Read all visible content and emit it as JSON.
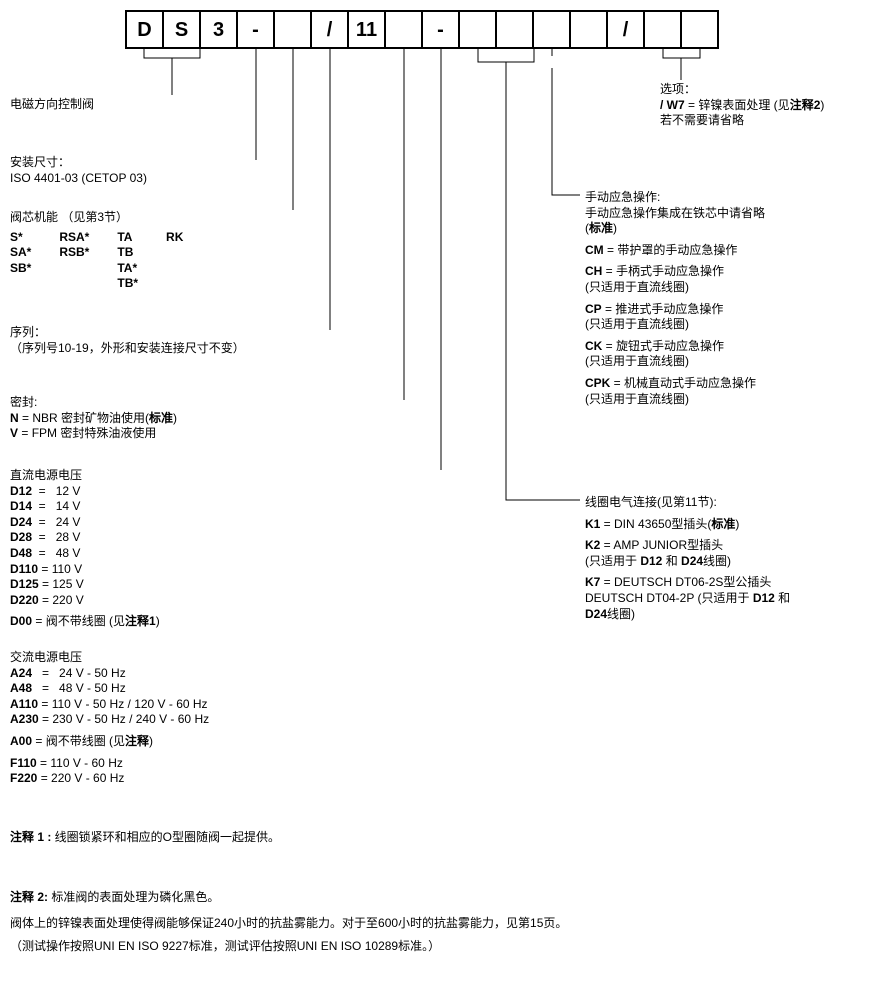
{
  "boxes": [
    "D",
    "S",
    "3",
    "-",
    "",
    "/",
    "11",
    "",
    "-",
    "",
    "",
    "",
    "",
    "/",
    "",
    ""
  ],
  "left": {
    "l1": "电磁方向控制阀",
    "size_h": "安装尺寸：",
    "size_v": "ISO 4401-03 (CETOP 03)",
    "spool_h": "阀芯机能  （见第3节）",
    "spool_c1": [
      "S*",
      "SA*",
      "SB*"
    ],
    "spool_c2": [
      "RSA*",
      "RSB*"
    ],
    "spool_c3": [
      "TA",
      "TB",
      "TA*",
      "TB*"
    ],
    "spool_c4": [
      "RK"
    ],
    "seq_h": "序列：",
    "seq_v": "（序列号10-19，外形和安装连接尺寸不变）",
    "seal_h": "密封:",
    "seal_n_code": "N",
    "seal_n_desc": " = NBR 密封矿物油使用(",
    "seal_n_std": "标准",
    "seal_n_close": ")",
    "seal_v_code": "V",
    "seal_v_desc": " = FPM 密封特殊油液使用",
    "dc_h": "直流电源电压",
    "dc_rows": [
      {
        "code": "D12",
        "desc": "  =   12 V"
      },
      {
        "code": "D14",
        "desc": "  =   14 V"
      },
      {
        "code": "D24",
        "desc": "  =   24 V"
      },
      {
        "code": "D28",
        "desc": "  =   28 V"
      },
      {
        "code": "D48",
        "desc": "  =   48 V"
      },
      {
        "code": "D110",
        "desc": " = 110 V"
      },
      {
        "code": "D125",
        "desc": " = 125 V"
      },
      {
        "code": "D220",
        "desc": " = 220 V"
      }
    ],
    "d00_code": "D00",
    "d00_desc": "  = 阀不带线圈 (见",
    "d00_note": "注释1",
    "d00_close": ")",
    "ac_h": "交流电源电压",
    "ac_rows": [
      {
        "code": "A24",
        "desc": "   =   24 V - 50 Hz"
      },
      {
        "code": "A48",
        "desc": "   =   48 V - 50 Hz"
      },
      {
        "code": "A110",
        "desc": " = 110 V - 50 Hz / 120 V - 60 Hz"
      },
      {
        "code": "A230",
        "desc": " = 230 V - 50 Hz / 240 V - 60 Hz"
      }
    ],
    "a00_code": "A00",
    "a00_desc": "  = 阀不带线圈 (见",
    "a00_note": "注释",
    "a00_close": ")",
    "ac_rows2": [
      {
        "code": "F110",
        "desc": " = 110 V - 60 Hz"
      },
      {
        "code": "F220",
        "desc": " = 220 V - 60 Hz"
      }
    ]
  },
  "right": {
    "opt_h": "选项：",
    "opt_w7_code": "/ W7",
    "opt_w7_desc": " = 锌镍表面处理 (见",
    "opt_w7_note": "注释2",
    "opt_w7_close": ")",
    "opt_omit": "若不需要请省略",
    "man_h": "手动应急操作:",
    "man_l1a": "手动应急操作集成在铁芯中请省略",
    "man_std": "标准",
    "cm_code": "CM",
    "cm_desc": " = 带护罩的手动应急操作",
    "ch_code": "CH",
    "ch_desc": " = 手柄式手动应急操作",
    "dc_only": "(只适用于直流线圈)",
    "cp_code": "CP",
    "cp_desc": " = 推进式手动应急操作",
    "ck_code": "CK",
    "ck_desc": " = 旋钮式手动应急操作",
    "cpk_code": "CPK",
    "cpk_desc": " = 机械直动式手动应急操作",
    "coil_h": "线圈电气连接(见第11节):",
    "k1_code": "K1",
    "k1_desc": " = DIN 43650型插头(",
    "k1_std": "标准",
    "k1_close": ")",
    "k2_code": "K2",
    "k2_desc": " = AMP JUNIOR型插头",
    "k2_note_a": "(只适用于 ",
    "k2_d12": "D12",
    "k2_and": " 和 ",
    "k2_d24": "D24",
    "k2_close": "线圈)",
    "k7_code": "K7",
    "k7_desc": " = DEUTSCH DT06-2S型公插头",
    "k7_line2a": "DEUTSCH DT04-2P  (只适用于 ",
    "k7_d12": "D12",
    "k7_and": " 和",
    "k7_d24": "D24",
    "k7_close": "线圈)"
  },
  "notes": {
    "n1_h": "注释 1 :",
    "n1_t": " 线圈锁紧环和相应的O型圈随阀一起提供。",
    "n2_h": "注释 2:",
    "n2_t": " 标准阀的表面处理为磷化黑色。",
    "n2_p1": "阀体上的锌镍表面处理使得阀能够保证240小时的抗盐雾能力。对于至600小时的抗盐雾能力，见第15页。",
    "n2_p2": "（测试操作按照UNI EN ISO 9227标准，测试评估按照UNI EN ISO 10289标准。）"
  }
}
